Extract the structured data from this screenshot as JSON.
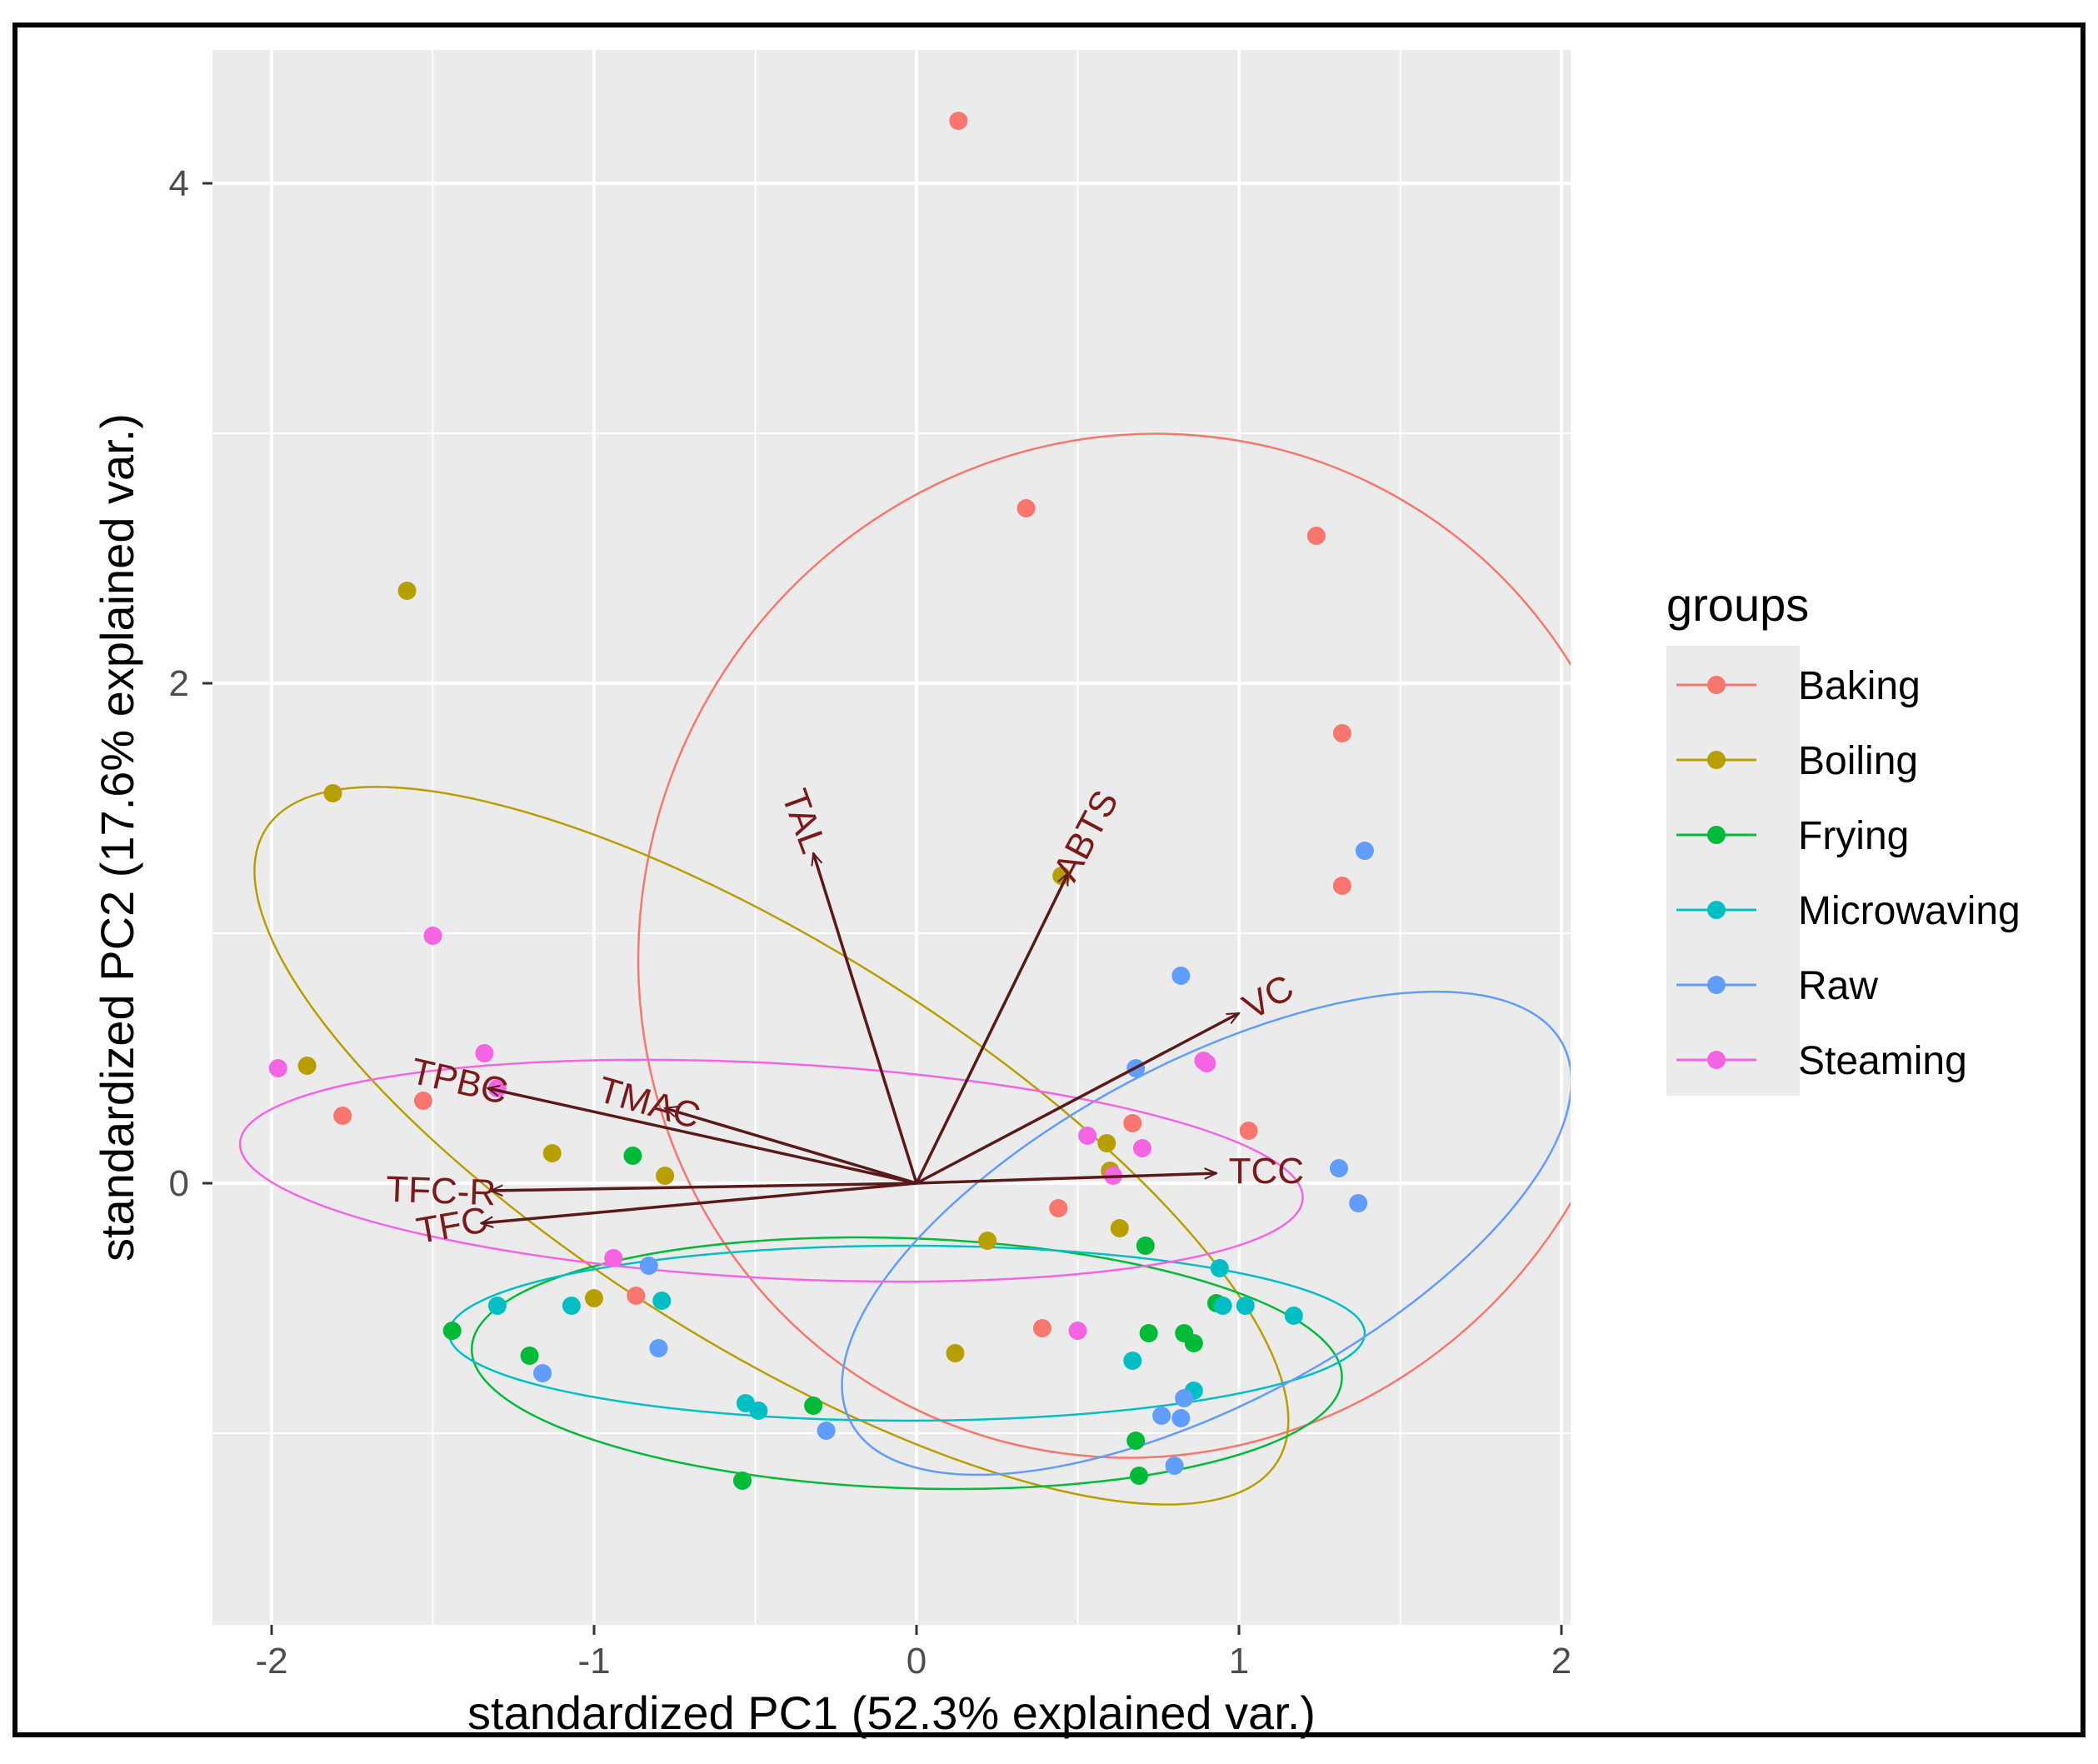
{
  "chart_data": {
    "type": "scatter",
    "subtype": "PCA biplot",
    "xlabel": "standardized PC1 (52.3% explained var.)",
    "ylabel": "standardized PC2 (17.6% explained var.)",
    "xlim": [
      -2.2,
      2.05
    ],
    "ylim": [
      -1.75,
      4.6
    ],
    "x_ticks": [
      -2,
      -1,
      0,
      1,
      2
    ],
    "x_tick_labels": [
      "-2",
      "-1",
      "0",
      "1",
      "2"
    ],
    "y_ticks": [
      0,
      2,
      4
    ],
    "y_tick_labels": [
      "0",
      "2",
      "4"
    ],
    "legend": {
      "title": "groups",
      "position": "right",
      "entries": [
        {
          "name": "Baking",
          "color": "#F8766D"
        },
        {
          "name": "Boiling",
          "color": "#B79F00"
        },
        {
          "name": "Frying",
          "color": "#00BA38"
        },
        {
          "name": "Microwaving",
          "color": "#00BFC4"
        },
        {
          "name": "Raw",
          "color": "#619CFF"
        },
        {
          "name": "Steaming",
          "color": "#F564E3"
        }
      ]
    },
    "series": [
      {
        "name": "Baking",
        "color": "#F8766D",
        "points": [
          [
            0.13,
            4.25
          ],
          [
            0.34,
            2.7
          ],
          [
            1.24,
            2.59
          ],
          [
            1.32,
            1.8
          ],
          [
            1.32,
            1.19
          ],
          [
            -1.78,
            0.27
          ],
          [
            -1.53,
            0.33
          ],
          [
            0.44,
            -0.1
          ],
          [
            1.03,
            0.21
          ],
          [
            0.67,
            0.24
          ],
          [
            -0.87,
            -0.45
          ],
          [
            0.39,
            -0.58
          ]
        ],
        "ellipse": {
          "cx": 0.7,
          "cy": 0.95,
          "rx": 1.6,
          "ry": 2.0,
          "angle": 60
        }
      },
      {
        "name": "Boiling",
        "color": "#B79F00",
        "points": [
          [
            -1.58,
            2.37
          ],
          [
            -1.81,
            1.56
          ],
          [
            -1.89,
            0.47
          ],
          [
            -1.13,
            0.12
          ],
          [
            -0.78,
            0.03
          ],
          [
            0.45,
            1.23
          ],
          [
            0.59,
            0.16
          ],
          [
            0.63,
            -0.18
          ],
          [
            0.22,
            -0.23
          ],
          [
            -1.0,
            -0.46
          ],
          [
            0.12,
            -0.68
          ],
          [
            0.6,
            0.05
          ]
        ],
        "ellipse": {
          "cx": -0.45,
          "cy": 0.15,
          "rx": 1.85,
          "ry": 0.8,
          "angle": -32
        }
      },
      {
        "name": "Frying",
        "color": "#00BA38",
        "points": [
          [
            -0.88,
            0.11
          ],
          [
            -1.44,
            -0.59
          ],
          [
            -1.2,
            -0.69
          ],
          [
            -0.32,
            -0.89
          ],
          [
            -0.54,
            -1.19
          ],
          [
            0.71,
            -0.25
          ],
          [
            0.72,
            -0.6
          ],
          [
            0.83,
            -0.6
          ],
          [
            0.86,
            -0.64
          ],
          [
            0.68,
            -1.03
          ],
          [
            0.69,
            -1.17
          ],
          [
            0.93,
            -0.48
          ]
        ],
        "ellipse": {
          "cx": -0.03,
          "cy": -0.72,
          "rx": 1.35,
          "ry": 0.5,
          "angle": -2
        }
      },
      {
        "name": "Microwaving",
        "color": "#00BFC4",
        "points": [
          [
            -1.3,
            -0.49
          ],
          [
            -1.07,
            -0.49
          ],
          [
            -0.79,
            -0.47
          ],
          [
            -0.53,
            -0.88
          ],
          [
            -0.49,
            -0.91
          ],
          [
            0.67,
            -0.71
          ],
          [
            0.86,
            -0.83
          ],
          [
            0.94,
            -0.34
          ],
          [
            0.95,
            -0.49
          ],
          [
            1.02,
            -0.49
          ],
          [
            1.17,
            -0.53
          ]
        ],
        "ellipse": {
          "cx": -0.03,
          "cy": -0.6,
          "rx": 1.42,
          "ry": 0.35,
          "angle": 0
        }
      },
      {
        "name": "Raw",
        "color": "#619CFF",
        "points": [
          [
            -1.16,
            -0.76
          ],
          [
            -0.83,
            -0.33
          ],
          [
            -0.8,
            -0.66
          ],
          [
            -0.28,
            -0.99
          ],
          [
            0.82,
            0.83
          ],
          [
            0.68,
            0.46
          ],
          [
            1.31,
            0.06
          ],
          [
            1.37,
            -0.08
          ],
          [
            1.39,
            1.33
          ],
          [
            0.76,
            -0.93
          ],
          [
            0.82,
            -0.94
          ],
          [
            0.8,
            -1.13
          ],
          [
            0.83,
            -0.86
          ]
        ],
        "ellipse": {
          "cx": 0.9,
          "cy": -0.2,
          "rx": 1.25,
          "ry": 0.68,
          "angle": 28
        }
      },
      {
        "name": "Steaming",
        "color": "#F564E3",
        "points": [
          [
            -1.98,
            0.46
          ],
          [
            -1.5,
            0.99
          ],
          [
            -1.34,
            0.52
          ],
          [
            -1.3,
            0.38
          ],
          [
            -0.94,
            -0.3
          ],
          [
            0.53,
            0.19
          ],
          [
            0.61,
            0.03
          ],
          [
            0.7,
            0.14
          ],
          [
            0.89,
            0.49
          ],
          [
            0.5,
            -0.59
          ],
          [
            0.9,
            0.48
          ]
        ],
        "ellipse": {
          "cx": -0.45,
          "cy": 0.05,
          "rx": 1.65,
          "ry": 0.43,
          "angle": -3
        }
      }
    ],
    "loadings": [
      {
        "label": "TAL",
        "x": -0.32,
        "y": 1.32,
        "label_angle": 70
      },
      {
        "label": "ABTS",
        "x": 0.47,
        "y": 1.24,
        "label_angle": -62
      },
      {
        "label": "VC",
        "x": 1.0,
        "y": 0.68,
        "label_angle": -30
      },
      {
        "label": "TCC",
        "x": 0.93,
        "y": 0.04,
        "label_angle": 0
      },
      {
        "label": "TMAC",
        "x": -0.78,
        "y": 0.3,
        "label_angle": 16
      },
      {
        "label": "TPBC",
        "x": -1.33,
        "y": 0.38,
        "label_angle": 13
      },
      {
        "label": "TFC-R",
        "x": -1.32,
        "y": -0.03,
        "label_angle": 2
      },
      {
        "label": "TFC",
        "x": -1.35,
        "y": -0.16,
        "label_angle": -10
      }
    ]
  }
}
